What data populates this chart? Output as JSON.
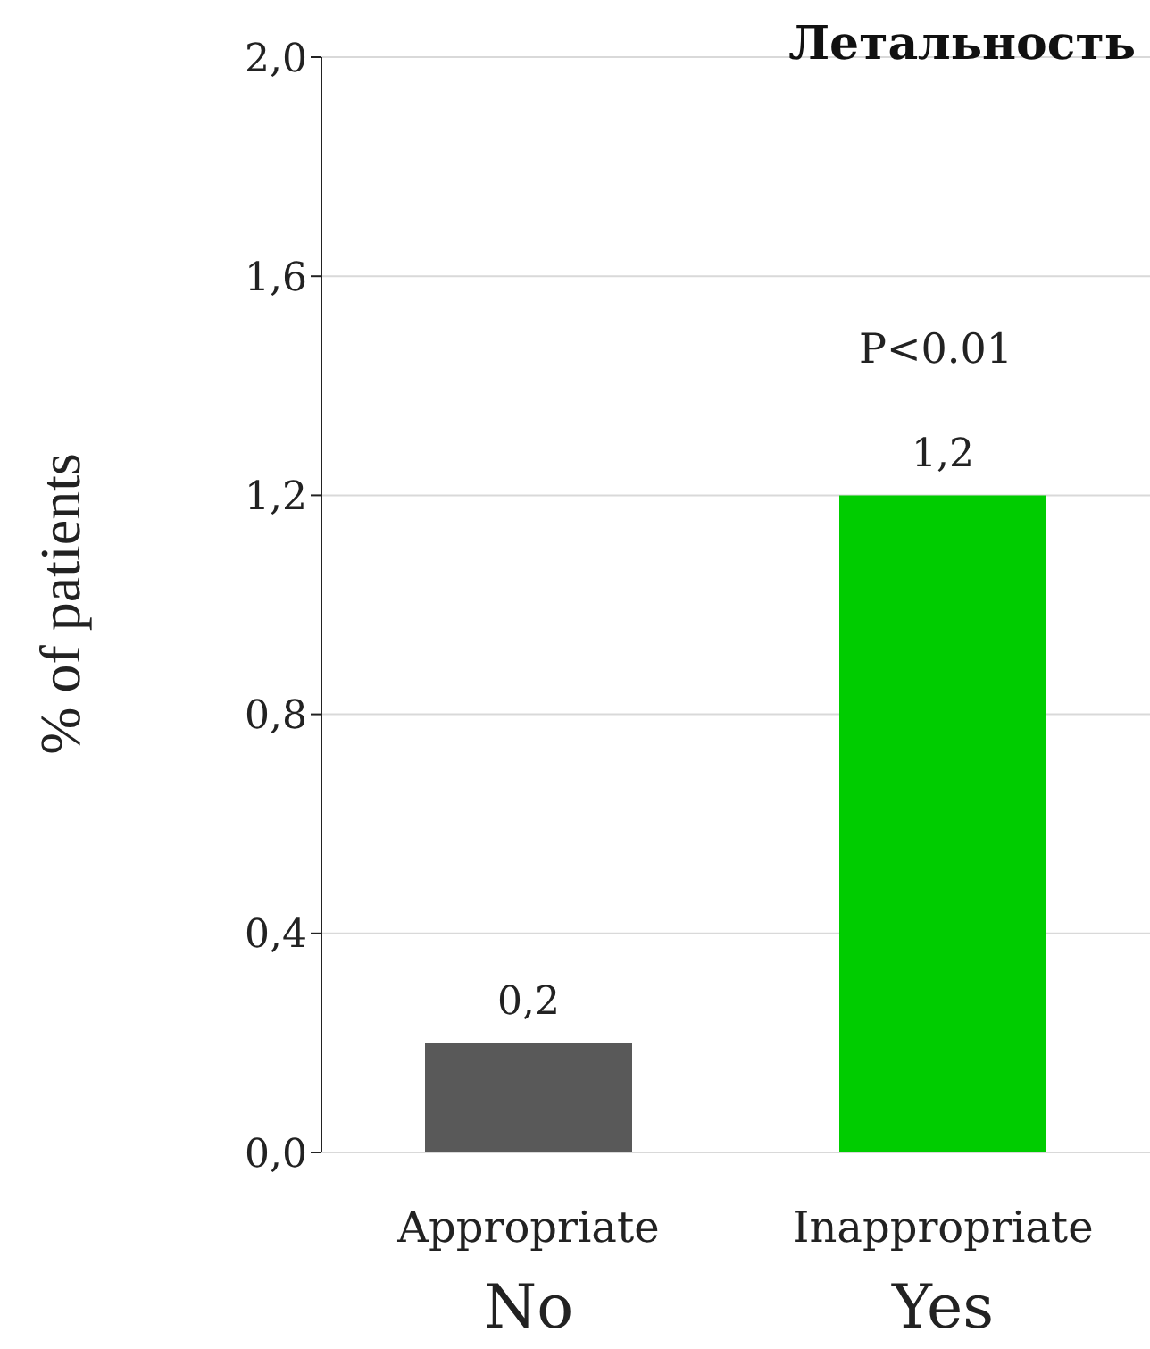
{
  "chart_data": {
    "type": "bar",
    "title": "Летальность",
    "ylabel": "% of patients",
    "categories": [
      "Appropriate\nNo",
      "Inappropriate\nYes"
    ],
    "values": [
      0.2,
      1.2
    ],
    "colors": [
      "#595959",
      "#00cc00"
    ],
    "value_labels": [
      "0,2",
      "1,2"
    ],
    "ylim": [
      0,
      2
    ],
    "yticks": [
      {
        "value": 0,
        "label": "0,0"
      },
      {
        "value": 0.4,
        "label": "0,4"
      },
      {
        "value": 0.8,
        "label": "0,8"
      },
      {
        "value": 1.2,
        "label": "1,2"
      },
      {
        "value": 1.6,
        "label": "1,6"
      },
      {
        "value": 2,
        "label": "2,0"
      }
    ],
    "grid": "y",
    "annotations": [
      "P<0.01"
    ]
  }
}
